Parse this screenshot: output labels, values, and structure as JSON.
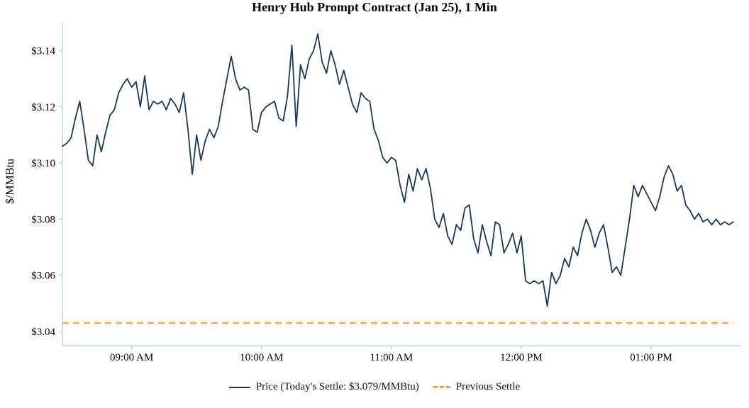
{
  "chart_data": {
    "type": "line",
    "title": "Henry Hub Prompt Contract (Jan 25), 1 Min",
    "xlabel": "",
    "ylabel": "$/MMBtu",
    "x_domain_minutes": [
      508,
      818
    ],
    "y_domain": [
      3.0349,
      3.148
    ],
    "x_ticks": [
      {
        "minutes": 540,
        "label": "09:00 AM"
      },
      {
        "minutes": 600,
        "label": "10:00 AM"
      },
      {
        "minutes": 660,
        "label": "11:00 AM"
      },
      {
        "minutes": 720,
        "label": "12:00 PM"
      },
      {
        "minutes": 780,
        "label": "01:00 PM"
      }
    ],
    "y_ticks": [
      {
        "value": 3.04,
        "label": "$3.04"
      },
      {
        "value": 3.06,
        "label": "$3.06"
      },
      {
        "value": 3.08,
        "label": "$3.08"
      },
      {
        "value": 3.1,
        "label": "$3.10"
      },
      {
        "value": 3.12,
        "label": "$3.12"
      },
      {
        "value": 3.14,
        "label": "$3.14"
      }
    ],
    "today_settle": 3.079,
    "previous_settle": 3.043,
    "legend": {
      "price_label": "Price (Today's Settle: $3.079/MMBtu)",
      "previous_settle_label": "Previous Settle"
    },
    "colors": {
      "price_line": "#17375e",
      "previous_settle_line": "#ffa43b",
      "axis": "#b5cbde"
    },
    "series": [
      {
        "name": "Price",
        "type": "line",
        "sample_interval_minutes": 2,
        "values": [
          3.106,
          3.107,
          3.109,
          3.116,
          3.122,
          3.112,
          3.101,
          3.099,
          3.11,
          3.104,
          3.111,
          3.117,
          3.119,
          3.125,
          3.128,
          3.13,
          3.127,
          3.129,
          3.12,
          3.131,
          3.119,
          3.122,
          3.121,
          3.122,
          3.119,
          3.123,
          3.121,
          3.118,
          3.125,
          3.112,
          3.096,
          3.11,
          3.101,
          3.108,
          3.112,
          3.109,
          3.113,
          3.122,
          3.13,
          3.138,
          3.13,
          3.126,
          3.127,
          3.126,
          3.112,
          3.111,
          3.118,
          3.12,
          3.121,
          3.122,
          3.116,
          3.115,
          3.124,
          3.142,
          3.113,
          3.135,
          3.13,
          3.137,
          3.14,
          3.146,
          3.136,
          3.132,
          3.14,
          3.135,
          3.128,
          3.133,
          3.127,
          3.121,
          3.118,
          3.125,
          3.123,
          3.122,
          3.112,
          3.108,
          3.102,
          3.1,
          3.102,
          3.101,
          3.092,
          3.086,
          3.096,
          3.09,
          3.098,
          3.094,
          3.098,
          3.091,
          3.08,
          3.077,
          3.082,
          3.074,
          3.071,
          3.078,
          3.076,
          3.084,
          3.085,
          3.073,
          3.068,
          3.078,
          3.072,
          3.067,
          3.079,
          3.078,
          3.068,
          3.071,
          3.075,
          3.068,
          3.074,
          3.058,
          3.057,
          3.058,
          3.057,
          3.058,
          3.049,
          3.061,
          3.057,
          3.06,
          3.066,
          3.063,
          3.07,
          3.067,
          3.075,
          3.08,
          3.076,
          3.07,
          3.075,
          3.078,
          3.07,
          3.061,
          3.063,
          3.06,
          3.07,
          3.08,
          3.092,
          3.088,
          3.092,
          3.089,
          3.086,
          3.083,
          3.088,
          3.095,
          3.099,
          3.096,
          3.09,
          3.092,
          3.085,
          3.083,
          3.08,
          3.082,
          3.079,
          3.08,
          3.078,
          3.08,
          3.078,
          3.079,
          3.078,
          3.079
        ]
      },
      {
        "name": "Previous Settle",
        "type": "hline",
        "value": 3.043,
        "style": "dashed"
      }
    ]
  }
}
